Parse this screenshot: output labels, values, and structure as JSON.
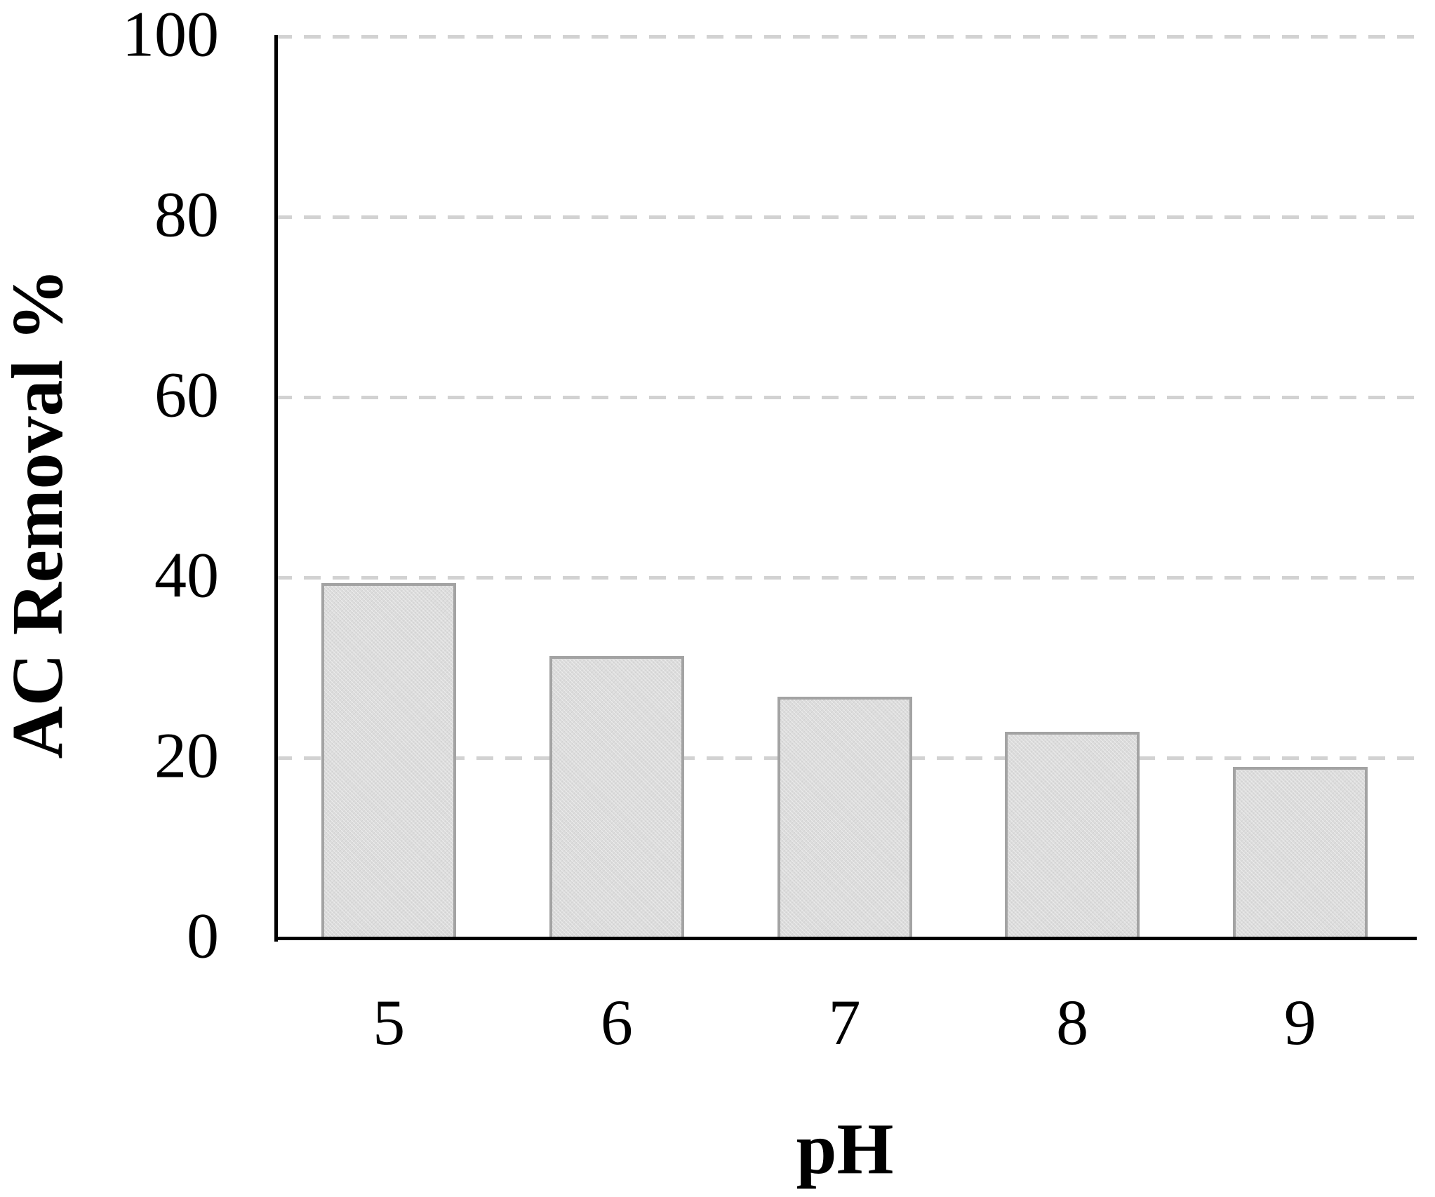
{
  "chart_data": {
    "type": "bar",
    "title": "",
    "xlabel": "pH",
    "ylabel": "AC Removal %",
    "categories": [
      "5",
      "6",
      "7",
      "8",
      "9"
    ],
    "values": [
      39.4,
      31.3,
      26.8,
      22.9,
      19.0
    ],
    "ylim": [
      0,
      100
    ],
    "yticks": [
      0,
      20,
      40,
      60,
      80,
      100
    ],
    "grid": {
      "horizontal": true,
      "style": "dashed",
      "at": [
        20,
        40,
        60,
        80,
        100
      ]
    },
    "legend": {
      "visible": false
    },
    "colors": {
      "background": "#ffffff",
      "bar_fill": "#dcdcdc",
      "bar_border": "#a3a3a3",
      "gridline": "#d2d2d2",
      "axis": "#000000",
      "text": "#000000"
    }
  }
}
